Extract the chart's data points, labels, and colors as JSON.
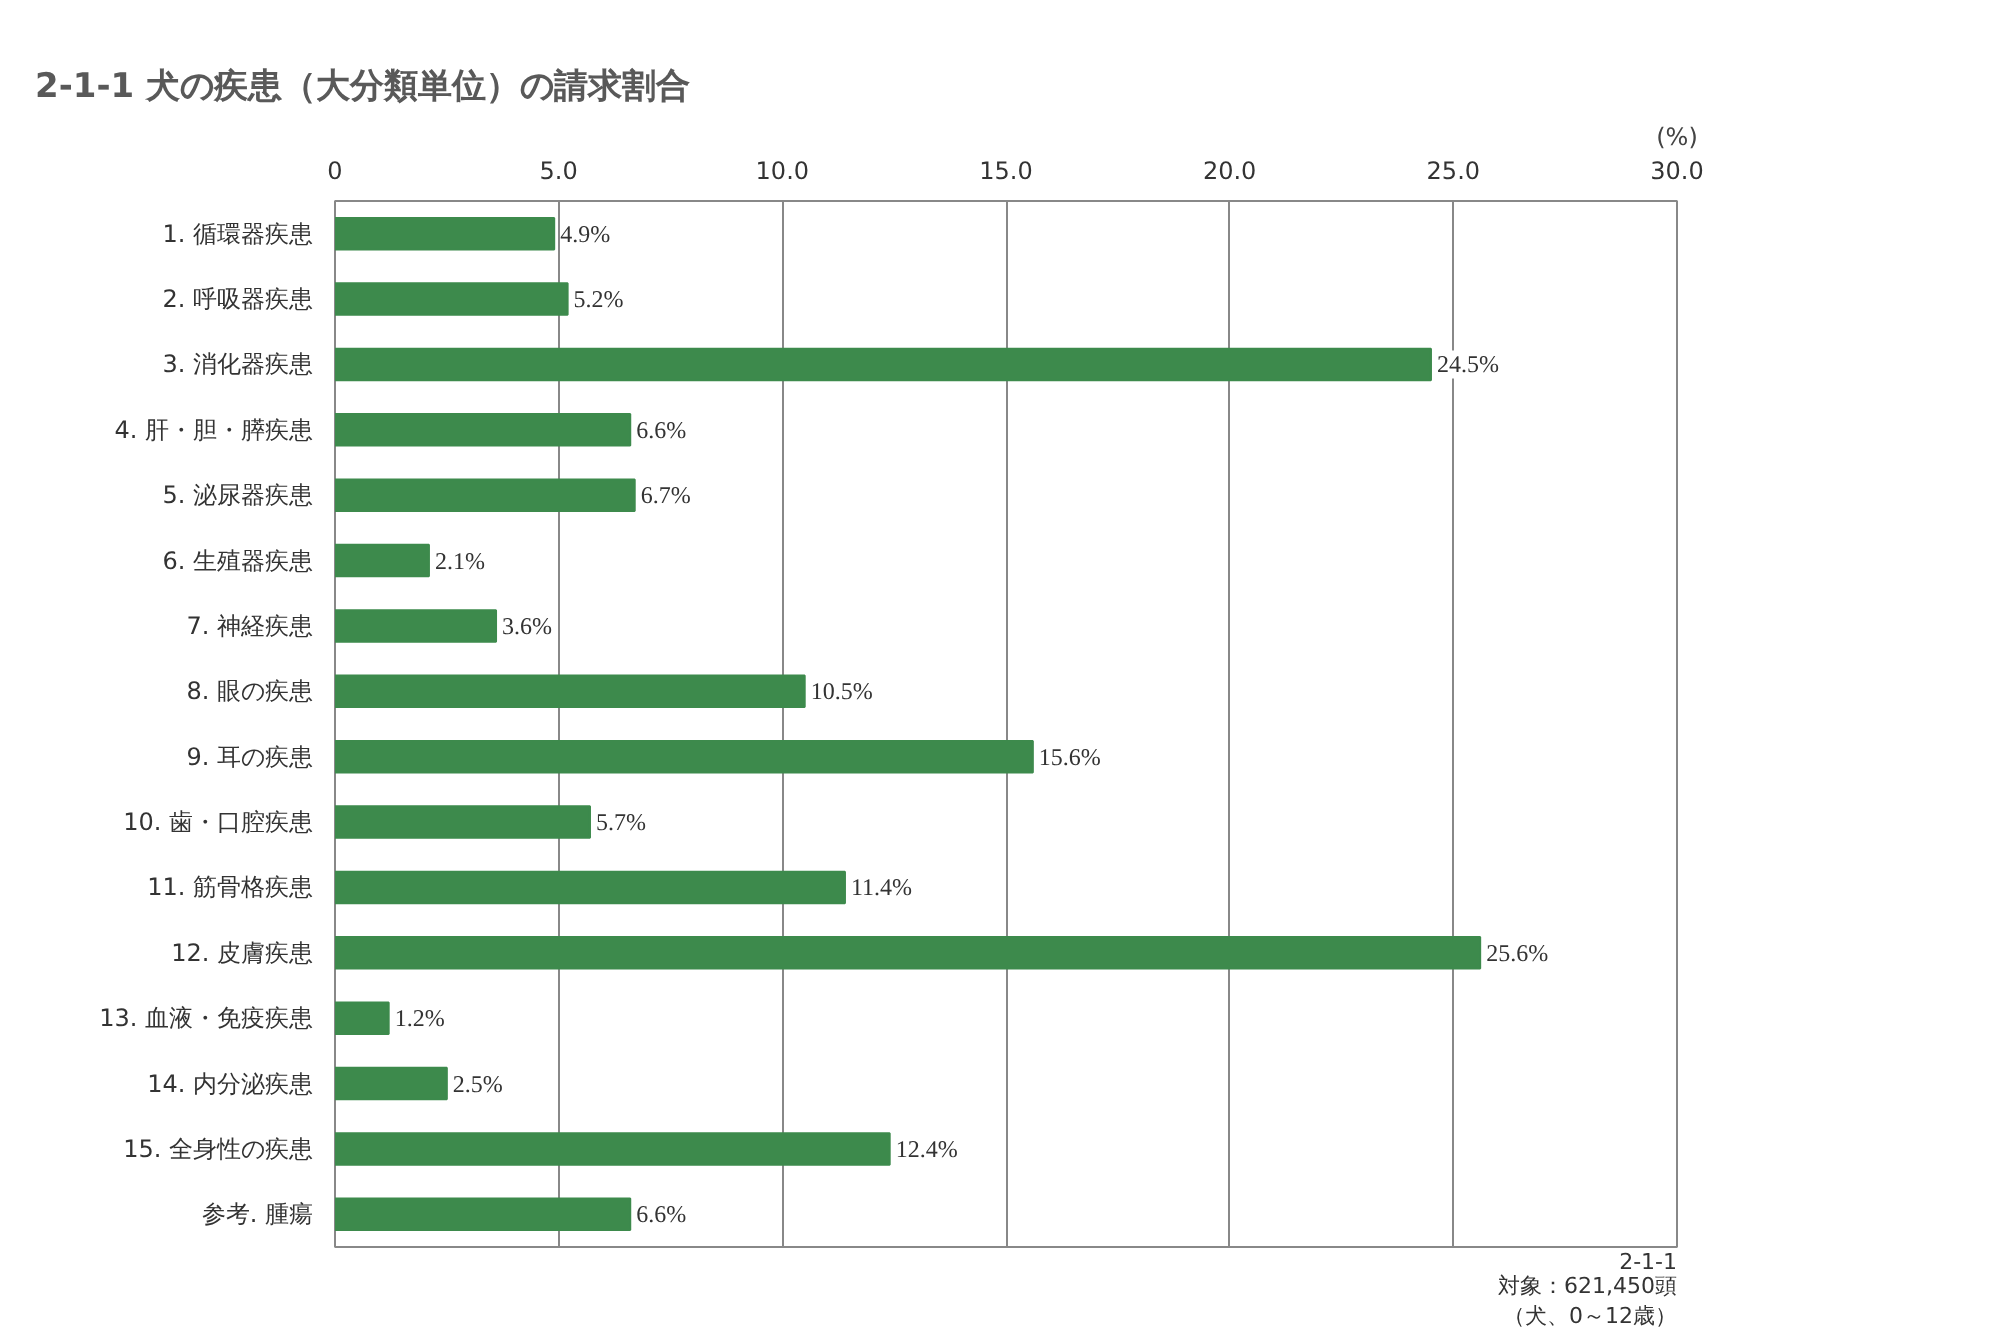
{
  "chart_data": {
    "type": "bar",
    "orientation": "horizontal",
    "title": "2-1-1  犬の疾患（大分類単位）の請求割合",
    "xlabel": "(%)",
    "categories": [
      "1. 循環器疾患",
      "2. 呼吸器疾患",
      "3. 消化器疾患",
      "4. 肝・胆・膵疾患",
      "5. 泌尿器疾患",
      "6. 生殖器疾患",
      "7. 神経疾患",
      "8. 眼の疾患",
      "9. 耳の疾患",
      "10. 歯・口腔疾患",
      "11. 筋骨格疾患",
      "12. 皮膚疾患",
      "13. 血液・免疫疾患",
      "14. 内分泌疾患",
      "15. 全身性の疾患",
      "参考. 腫瘍"
    ],
    "values": [
      4.9,
      5.2,
      24.5,
      6.6,
      6.7,
      2.1,
      3.6,
      10.5,
      15.6,
      5.7,
      11.4,
      25.6,
      1.2,
      2.5,
      12.4,
      6.6
    ],
    "value_labels": [
      "4.9%",
      "5.2%",
      "24.5%",
      "6.6%",
      "6.7%",
      "2.1%",
      "3.6%",
      "10.5%",
      "15.6%",
      "5.7%",
      "11.4%",
      "25.6%",
      "1.2%",
      "2.5%",
      "12.4%",
      "6.6%"
    ],
    "color": "#3d8a4c",
    "xlim": [
      0,
      30
    ],
    "xticks": [
      0,
      {
        "value": 5,
        "label": "5.0"
      },
      {
        "value": 10,
        "label": "10.0"
      },
      {
        "value": 15,
        "label": "15.0"
      },
      {
        "value": 20,
        "label": "20.0"
      },
      {
        "value": 25,
        "label": "25.0"
      },
      {
        "value": 30,
        "label": "30.0"
      }
    ],
    "grid": "x",
    "annotations": [
      "2-1-1",
      "対象：621,450頭",
      "（犬、0～12歳）"
    ]
  }
}
